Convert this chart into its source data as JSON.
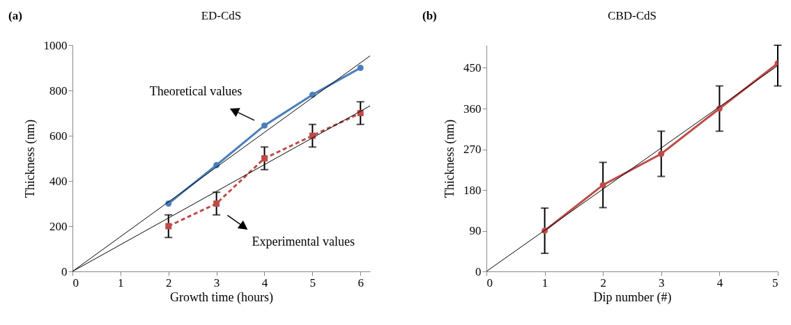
{
  "chart_data": [
    {
      "type": "line",
      "title": "ED-CdS",
      "xlabel": "Growth time (hours)",
      "ylabel": "Thickness (nm)",
      "annotations": [
        "(a)",
        "Theoretical values",
        "Experimental values"
      ],
      "xlim": [
        0,
        6.2
      ],
      "xticks": [
        0,
        1,
        2,
        3,
        4,
        5,
        6
      ],
      "ylim": [
        0,
        1000
      ],
      "yticks": [
        0,
        200,
        400,
        600,
        800,
        1000
      ],
      "grid": false,
      "legend": false,
      "x": [
        2,
        3,
        4,
        5,
        6
      ],
      "series": [
        {
          "color": "#4a7ebb",
          "marker": "circle",
          "line_style": "solid",
          "values": [
            300,
            470,
            645,
            781,
            900
          ]
        },
        {
          "color": "#be4b48",
          "marker": "square",
          "line_style": "dashed",
          "values": [
            200,
            300,
            500,
            600,
            700
          ],
          "errors": [
            50,
            50,
            50,
            50,
            50
          ]
        },
        {
          "type": "line",
          "color": "#000000",
          "marker": "none",
          "line_style": "solid",
          "x": [
            0,
            6.2
          ],
          "values": [
            0,
            953
          ]
        },
        {
          "type": "line",
          "color": "#000000",
          "marker": "none",
          "line_style": "solid",
          "x": [
            0,
            6.2
          ],
          "values": [
            0,
            732
          ]
        }
      ]
    },
    {
      "type": "line",
      "title": "CBD-CdS",
      "xlabel": "Dip number (#)",
      "ylabel": "Thickness (nm)",
      "annotations": [
        "(b)"
      ],
      "xlim": [
        0,
        5
      ],
      "xticks": [
        0,
        1,
        2,
        3,
        4,
        5
      ],
      "ylim": [
        0,
        500
      ],
      "yticks": [
        0,
        90,
        180,
        270,
        360,
        450
      ],
      "grid": false,
      "legend": false,
      "x": [
        1,
        2,
        3,
        4,
        5
      ],
      "series": [
        {
          "color": "#be4b48",
          "marker": "circle",
          "line_style": "solid",
          "values": [
            90,
            191,
            260,
            360,
            460
          ],
          "errors": [
            50,
            50,
            50,
            50,
            [
              410,
              500
            ]
          ]
        },
        {
          "type": "line",
          "color": "#000000",
          "marker": "none",
          "line_style": "solid",
          "x": [
            0,
            5
          ],
          "values": [
            0,
            455
          ]
        }
      ]
    }
  ]
}
